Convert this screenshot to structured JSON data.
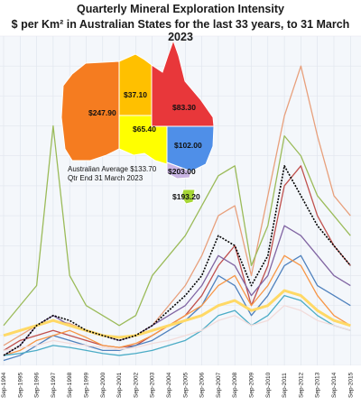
{
  "chart_data": {
    "type": "line",
    "title": "Quarterly Mineral Exploration Intensity",
    "subtitle": "$ per Km² in Australian States for the last 33 years, to 31 March 2023",
    "x": [
      "Sep-1994",
      "Sep-1995",
      "Sep-1996",
      "Sep-1997",
      "Sep-1998",
      "Sep-1999",
      "Sep-2000",
      "Sep-2001",
      "Sep-2002",
      "Sep-2003",
      "Sep-2004",
      "Sep-2005",
      "Sep-2006",
      "Sep-2007",
      "Sep-2008",
      "Sep-2009",
      "Sep-2010",
      "Sep-2011",
      "Sep-2012",
      "Sep-2013",
      "Sep-2014",
      "Sep-2015"
    ],
    "x_tick_labels": [
      "Sep-1994",
      "Sep-1995",
      "Sep-1996",
      "Sep-1997",
      "Sep-1998",
      "Sep-1999",
      "Sep-2000",
      "Sep-2001",
      "Sep-2002",
      "Sep-2003",
      "Sep-2004",
      "Sep-2005",
      "Sep-2006",
      "Sep-2007",
      "Sep-2008",
      "Sep-2009",
      "Sep-2010",
      "Sep-2011",
      "Sep-2012",
      "Sep-2013",
      "Sep-2014",
      "Sep-2015"
    ],
    "ylim": [
      0,
      330
    ],
    "grid": true,
    "series": [
      {
        "color": "#e8a07c",
        "values": [
          20,
          30,
          40,
          45,
          42,
          35,
          30,
          28,
          30,
          40,
          60,
          80,
          110,
          150,
          160,
          90,
          170,
          250,
          300,
          230,
          170,
          150
        ]
      },
      {
        "color": "#9bbb59",
        "values": [
          40,
          60,
          80,
          240,
          90,
          60,
          50,
          40,
          50,
          90,
          110,
          130,
          160,
          190,
          200,
          100,
          140,
          230,
          210,
          170,
          150,
          130
        ]
      },
      {
        "color": "#c0504d",
        "values": [
          15,
          25,
          30,
          35,
          30,
          25,
          20,
          18,
          20,
          30,
          40,
          50,
          70,
          100,
          120,
          60,
          100,
          180,
          200,
          150,
          120,
          100
        ]
      },
      {
        "color": "#8064a2",
        "values": [
          10,
          20,
          40,
          50,
          40,
          35,
          30,
          25,
          30,
          40,
          50,
          60,
          80,
          110,
          100,
          70,
          90,
          140,
          130,
          110,
          90,
          80
        ]
      },
      {
        "color": "#4f81bd",
        "values": [
          5,
          10,
          20,
          30,
          25,
          20,
          15,
          15,
          20,
          25,
          35,
          45,
          60,
          90,
          80,
          50,
          70,
          100,
          110,
          80,
          70,
          60
        ]
      },
      {
        "color": "#f79646",
        "values": [
          10,
          15,
          25,
          30,
          35,
          28,
          20,
          18,
          22,
          30,
          40,
          50,
          60,
          80,
          90,
          60,
          80,
          110,
          100,
          70,
          50,
          40
        ]
      },
      {
        "color": "#4bacc6",
        "values": [
          10,
          12,
          15,
          20,
          18,
          15,
          12,
          10,
          12,
          15,
          20,
          25,
          35,
          50,
          55,
          40,
          50,
          70,
          65,
          50,
          40,
          35
        ]
      },
      {
        "color": "#f2dcdb",
        "values": [
          15,
          18,
          20,
          25,
          22,
          20,
          18,
          16,
          18,
          22,
          25,
          30,
          35,
          45,
          50,
          40,
          45,
          60,
          55,
          45,
          40,
          35
        ]
      },
      {
        "color": "#ffd966",
        "values": [
          30,
          35,
          40,
          45,
          40,
          35,
          30,
          28,
          30,
          35,
          40,
          45,
          50,
          60,
          65,
          55,
          60,
          75,
          70,
          55,
          45,
          40
        ]
      },
      {
        "color": "#000000",
        "values": [
          10,
          20,
          40,
          50,
          45,
          35,
          30,
          25,
          30,
          40,
          55,
          70,
          90,
          130,
          120,
          80,
          110,
          200,
          170,
          140,
          120,
          100
        ]
      }
    ],
    "map": {
      "states": [
        {
          "id": "WA",
          "value": "$247.90",
          "color": "#f57c20"
        },
        {
          "id": "NT",
          "value": "$37.10",
          "color": "#ffc000"
        },
        {
          "id": "SA",
          "value": "$65.40",
          "color": "#ffff00"
        },
        {
          "id": "QLD",
          "value": "$83.30",
          "color": "#e8373a"
        },
        {
          "id": "NSW",
          "value": "$102.00",
          "color": "#4f8fe8"
        },
        {
          "id": "VIC",
          "value": "$203.00",
          "color": "#c9b4e4"
        },
        {
          "id": "TAS",
          "value": "$193.20",
          "color": "#a6d635"
        }
      ],
      "note_line1": "Australian Average $133.70",
      "note_line2": "Qtr End 31 March 2023"
    }
  }
}
